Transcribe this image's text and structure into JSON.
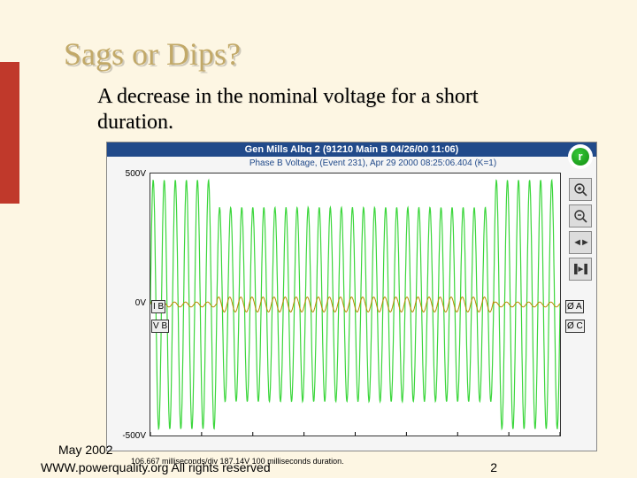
{
  "slide": {
    "title": "Sags or Dips?",
    "subtitle": "A decrease in the nominal voltage for a short duration.",
    "date": "May 2002",
    "footer": "WWW.powerquality.org  All rights reserved",
    "number": "2",
    "accent_color": "#c0392b",
    "bg_color": "#fdf6e3",
    "title_color": "#c2a968"
  },
  "scope": {
    "window_title": "Gen Mills Albq 2 (91210 Main B 04/26/00 11:06)",
    "subtitle": "Phase B Voltage, (Event 231), Apr 29 2000 08:25:06.404 (K=1)",
    "logo_letter": "r",
    "y_axis": {
      "max_label": "500V",
      "mid_label": "0V",
      "min_label": "-500V"
    },
    "markers": {
      "ib": "I B",
      "vb": "V B",
      "oa": "Ø A",
      "oc": "Ø C"
    },
    "bottom_readout": "106.667 milliseconds/div   187.14V  100 milliseconds duration.",
    "tools": {
      "zoom_in": "+",
      "zoom_out": "−",
      "pan_left": "◄",
      "pan_right": "►",
      "cursor_l": "▐◄",
      "cursor_r": "►▌"
    },
    "voltage": {
      "type": "line",
      "color": "#3bd63b",
      "stroke_width": 1.2,
      "cycles_pre": 6,
      "cycles_sag": 25,
      "cycles_post": 6,
      "amp_normal": 1.0,
      "amp_sag": 0.78,
      "ylim": [
        -500,
        500
      ]
    },
    "current": {
      "type": "line",
      "color": "#b88a00",
      "stroke_width": 1,
      "amp_normal": 0.02,
      "amp_event": 0.06,
      "cycles": 37
    },
    "background_color": "#ffffff",
    "panel_bg": "#f5f5f5",
    "title_bg": "#214a8a"
  }
}
